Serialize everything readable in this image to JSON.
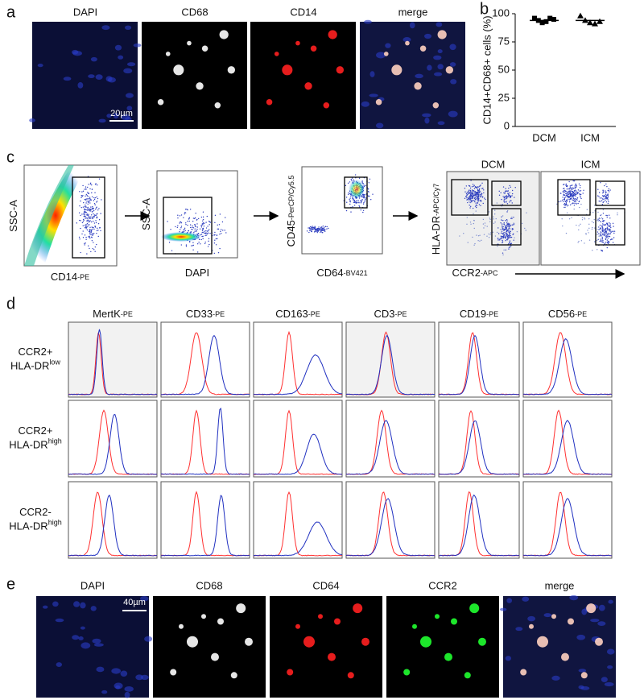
{
  "panel_a": {
    "label": "a",
    "channels": [
      "DAPI",
      "CD68",
      "CD14",
      "merge"
    ],
    "scale_bar": "20µm"
  },
  "panel_b": {
    "label": "b",
    "type": "scatter",
    "y_label": "CD14+CD68+ cells (%)",
    "categories": [
      "DCM",
      "ICM"
    ],
    "series": [
      {
        "marker": "square",
        "color": "#000000",
        "values": [
          96,
          94,
          92,
          93,
          96,
          95
        ]
      },
      {
        "marker": "triangle",
        "color": "#000000",
        "values": [
          98,
          94,
          92,
          91,
          93
        ]
      }
    ],
    "means": [
      94,
      94
    ],
    "ylim": [
      0,
      100
    ],
    "yticks": [
      0,
      25,
      50,
      75,
      100
    ]
  },
  "panel_c": {
    "label": "c",
    "plots": [
      {
        "y_label": "SSC-A",
        "x_label": "CD14",
        "x_suffix": "-PE"
      },
      {
        "y_label": "SSC-A",
        "x_label": "DAPI"
      },
      {
        "y_label": "CD45",
        "y_suffix": "-PerCP/Cy5.5",
        "x_label": "CD64",
        "x_suffix": "-BV421"
      },
      {
        "y_label": "HLA-DR",
        "y_suffix": "-APC/Cy7",
        "x_label": "CCR2",
        "x_suffix": "-APC",
        "titles": [
          "DCM",
          "ICM"
        ]
      }
    ]
  },
  "panel_d": {
    "label": "d",
    "columns": [
      {
        "name": "MertK",
        "suffix": "-PE"
      },
      {
        "name": "CD33",
        "suffix": "-PE"
      },
      {
        "name": "CD163",
        "suffix": "-PE"
      },
      {
        "name": "CD3",
        "suffix": "-PE"
      },
      {
        "name": "CD19",
        "suffix": "-PE"
      },
      {
        "name": "CD56",
        "suffix": "-PE"
      }
    ],
    "rows": [
      {
        "line1": "CCR2+",
        "line2": "HLA-DR",
        "sup": "low"
      },
      {
        "line1": "CCR2+",
        "line2": "HLA-DR",
        "sup": "high"
      },
      {
        "line1": "CCR2-",
        "line2": "HLA-DR",
        "sup": "high"
      }
    ]
  },
  "panel_e": {
    "label": "e",
    "channels": [
      "DAPI",
      "CD68",
      "CD64",
      "CCR2",
      "merge"
    ],
    "scale_bar": "40µm"
  }
}
